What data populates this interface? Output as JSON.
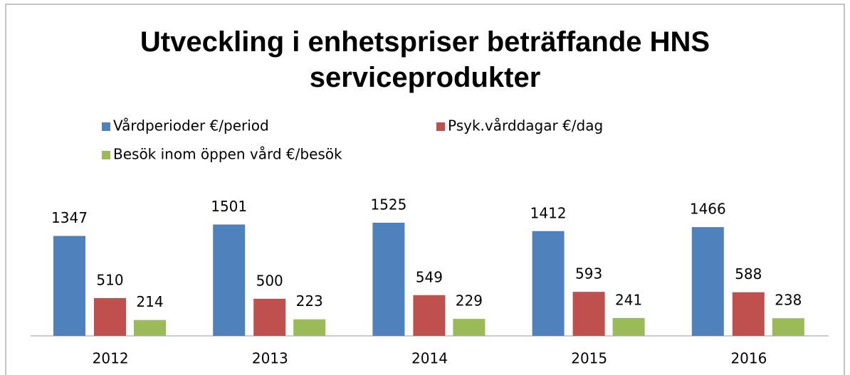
{
  "chart_data": {
    "type": "bar",
    "title": "Utveckling i enhetspriser beträffande HNS serviceprodukter",
    "categories": [
      "2012",
      "2013",
      "2014",
      "2015",
      "2016"
    ],
    "series": [
      {
        "name": "Vårdperioder €/period",
        "color": "#4f81bd",
        "values": [
          1347,
          1501,
          1525,
          1412,
          1466
        ]
      },
      {
        "name": "Psyk.vårddagar €/dag",
        "color": "#c0504d",
        "values": [
          510,
          500,
          549,
          593,
          588
        ]
      },
      {
        "name": "Besök inom öppen vård €/besök",
        "color": "#9bbb59",
        "values": [
          214,
          223,
          229,
          241,
          238
        ]
      }
    ],
    "grid": false
  }
}
